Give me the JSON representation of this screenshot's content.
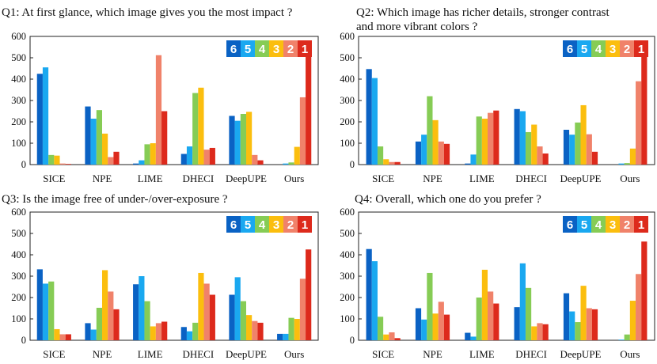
{
  "legend_labels": [
    "6",
    "5",
    "4",
    "3",
    "2",
    "1"
  ],
  "colors": {
    "6": "#0a62c4",
    "5": "#1aa8f0",
    "4": "#86cc55",
    "3": "#fbbe0e",
    "2": "#f0826a",
    "1": "#dd2a1c"
  },
  "chart_data": [
    {
      "type": "bar",
      "title": "Q1: At first glance, which image gives you the most impact ?",
      "title_lines": [
        "Q1: At first glance, which image gives you the most impact ?"
      ],
      "categories": [
        "SICE",
        "NPE",
        "LIME",
        "DHECI",
        "DeepUPE",
        "Ours"
      ],
      "ylim": [
        0,
        600
      ],
      "yticks": [
        0,
        100,
        200,
        300,
        400,
        500,
        600
      ],
      "series": [
        {
          "name": "6",
          "values": [
            425,
            272,
            5,
            50,
            228,
            0
          ]
        },
        {
          "name": "5",
          "values": [
            455,
            215,
            20,
            85,
            205,
            5
          ]
        },
        {
          "name": "4",
          "values": [
            45,
            255,
            95,
            335,
            237,
            10
          ]
        },
        {
          "name": "3",
          "values": [
            42,
            145,
            100,
            360,
            247,
            83
          ]
        },
        {
          "name": "2",
          "values": [
            5,
            35,
            512,
            70,
            45,
            315
          ]
        },
        {
          "name": "1",
          "values": [
            3,
            60,
            250,
            78,
            20,
            568
          ]
        }
      ]
    },
    {
      "type": "bar",
      "title": "Q2:  Which image has richer details, stronger contrast and more vibrant colors ?",
      "title_lines": [
        "Q2:  Which image has richer details, stronger contrast",
        "and more vibrant colors ?"
      ],
      "categories": [
        "SICE",
        "NPE",
        "LIME",
        "DHECI",
        "DeepUPE",
        "Ours"
      ],
      "ylim": [
        0,
        600
      ],
      "yticks": [
        0,
        100,
        200,
        300,
        400,
        500,
        600
      ],
      "series": [
        {
          "name": "6",
          "values": [
            447,
            108,
            5,
            260,
            163,
            0
          ]
        },
        {
          "name": "5",
          "values": [
            405,
            140,
            47,
            250,
            140,
            5
          ]
        },
        {
          "name": "4",
          "values": [
            85,
            320,
            225,
            152,
            197,
            7
          ]
        },
        {
          "name": "3",
          "values": [
            25,
            208,
            215,
            187,
            278,
            75
          ]
        },
        {
          "name": "2",
          "values": [
            12,
            108,
            242,
            85,
            142,
            390
          ]
        },
        {
          "name": "1",
          "values": [
            12,
            97,
            253,
            52,
            60,
            510
          ]
        }
      ]
    },
    {
      "type": "bar",
      "title": "Q3: Is the image free of under-/over-exposure ?",
      "title_lines": [
        "Q3: Is the image free of under-/over-exposure ?"
      ],
      "categories": [
        "SICE",
        "NPE",
        "LIME",
        "DHECI",
        "DeepUPE",
        "Ours"
      ],
      "ylim": [
        0,
        600
      ],
      "yticks": [
        0,
        100,
        200,
        300,
        400,
        500,
        600
      ],
      "series": [
        {
          "name": "6",
          "values": [
            332,
            80,
            262,
            62,
            213,
            30
          ]
        },
        {
          "name": "5",
          "values": [
            265,
            50,
            300,
            42,
            295,
            30
          ]
        },
        {
          "name": "4",
          "values": [
            275,
            152,
            183,
            82,
            183,
            105
          ]
        },
        {
          "name": "3",
          "values": [
            52,
            328,
            65,
            315,
            118,
            100
          ]
        },
        {
          "name": "2",
          "values": [
            28,
            228,
            80,
            265,
            90,
            288
          ]
        },
        {
          "name": "1",
          "values": [
            28,
            145,
            87,
            213,
            82,
            425
          ]
        }
      ]
    },
    {
      "type": "bar",
      "title": "Q4: Overall, which one do you prefer ?",
      "title_lines": [
        "Q4: Overall, which one do you prefer ?"
      ],
      "categories": [
        "SICE",
        "NPE",
        "LIME",
        "DHECI",
        "DeepUPE",
        "Ours"
      ],
      "ylim": [
        0,
        600
      ],
      "yticks": [
        0,
        100,
        200,
        300,
        400,
        500,
        600
      ],
      "series": [
        {
          "name": "6",
          "values": [
            427,
            150,
            35,
            155,
            220,
            0
          ]
        },
        {
          "name": "5",
          "values": [
            370,
            97,
            17,
            360,
            135,
            3
          ]
        },
        {
          "name": "4",
          "values": [
            110,
            315,
            200,
            245,
            85,
            27
          ]
        },
        {
          "name": "3",
          "values": [
            27,
            125,
            330,
            65,
            255,
            185
          ]
        },
        {
          "name": "2",
          "values": [
            37,
            180,
            228,
            80,
            150,
            310
          ]
        },
        {
          "name": "1",
          "values": [
            10,
            120,
            172,
            75,
            145,
            462
          ]
        }
      ]
    }
  ]
}
